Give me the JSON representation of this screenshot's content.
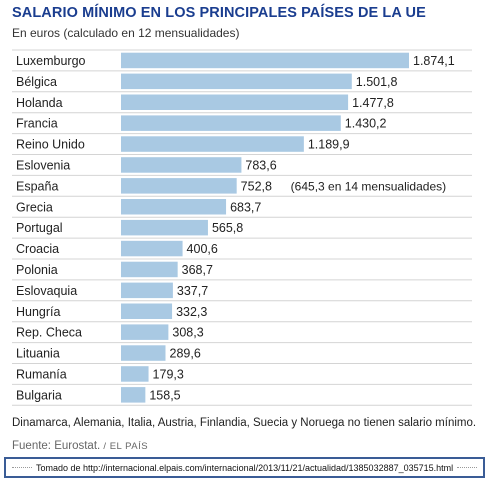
{
  "header": {
    "title": "SALARIO MÍNIMO EN LOS PRINCIPALES PAÍSES DE LA UE",
    "subtitle": "En euros (calculado en 12 mensualidades)"
  },
  "chart_data": {
    "type": "bar",
    "orientation": "horizontal",
    "title": "SALARIO MÍNIMO EN LOS PRINCIPALES PAÍSES DE LA UE",
    "subtitle": "En euros (calculado en 12 mensualidades)",
    "categories": [
      "Luxemburgo",
      "Bélgica",
      "Holanda",
      "Francia",
      "Reino Unido",
      "Eslovenia",
      "España",
      "Grecia",
      "Portugal",
      "Croacia",
      "Polonia",
      "Eslovaquia",
      "Hungría",
      "Rep. Checa",
      "Lituania",
      "Rumanía",
      "Bulgaria"
    ],
    "values": [
      1874.1,
      1501.8,
      1477.8,
      1430.2,
      1189.9,
      783.6,
      752.8,
      683.7,
      565.8,
      400.6,
      368.7,
      337.7,
      332.3,
      308.3,
      289.6,
      179.3,
      158.5
    ],
    "value_labels": [
      "1.874,1",
      "1.501,8",
      "1.477,8",
      "1.430,2",
      "1.189,9",
      "783,6",
      "752,8",
      "683,7",
      "565,8",
      "400,6",
      "368,7",
      "337,7",
      "332,3",
      "308,3",
      "289,6",
      "179,3",
      "158,5"
    ],
    "annotations": [
      {
        "category": "España",
        "text": "(645,3 en 14 mensualidades)"
      }
    ],
    "xlim": [
      0,
      1874.1
    ],
    "grid": false,
    "bar_color": "#a9c9e3",
    "row_divider_color": "#d4d4d4"
  },
  "footer": {
    "note": "Dinamarca, Alemania, Italia, Austria, Finlandia, Suecia y Noruega no tienen salario mínimo.",
    "source_label": "Fuente: Eurostat.",
    "source_brand": "/ EL PAÍS",
    "credit": "Tomado de http://internacional.elpais.com/internacional/2013/11/21/actualidad/1385032887_035715.html",
    "credit_border_color": "#3a5c96"
  }
}
